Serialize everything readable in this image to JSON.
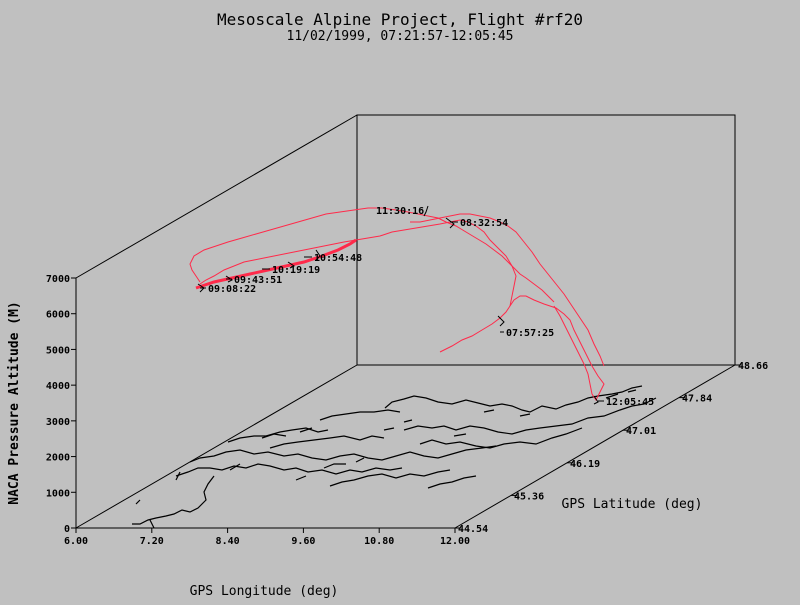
{
  "colors": {
    "background": "#c0c0c0",
    "track": "#ff2a4a",
    "axes": "#000000"
  },
  "chart_data": {
    "type": "line3d",
    "title": "Mesoscale Alpine Project, Flight #rf20",
    "subtitle": "11/02/1999, 07:21:57-12:05:45",
    "xlabel": "GPS Longitude (deg)",
    "ylabel": "GPS Latitude (deg)",
    "zlabel": "NACA Pressure Altitude (M)",
    "xlim": [
      6.0,
      12.0
    ],
    "ylim": [
      44.54,
      48.66
    ],
    "zlim": [
      0,
      7000
    ],
    "x_ticks": [
      "6.00",
      "7.20",
      "8.40",
      "9.60",
      "10.80",
      "12.00"
    ],
    "y_ticks": [
      "44.54",
      "45.36",
      "46.19",
      "47.01",
      "47.84",
      "48.66"
    ],
    "z_ticks": [
      "0",
      "1000",
      "2000",
      "3000",
      "4000",
      "5000",
      "6000",
      "7000"
    ],
    "time_labels": [
      {
        "name": "t-0757",
        "text": "07:57:25"
      },
      {
        "name": "t-0832",
        "text": "08:32:54"
      },
      {
        "name": "t-0908",
        "text": "09:08:22"
      },
      {
        "name": "t-0943",
        "text": "09:43:51"
      },
      {
        "name": "t-1019",
        "text": "10:19:19"
      },
      {
        "name": "t-1054",
        "text": "10:54:48"
      },
      {
        "name": "t-1130",
        "text": "11:30:16"
      },
      {
        "name": "t-1205",
        "text": "12:05:45"
      }
    ]
  }
}
